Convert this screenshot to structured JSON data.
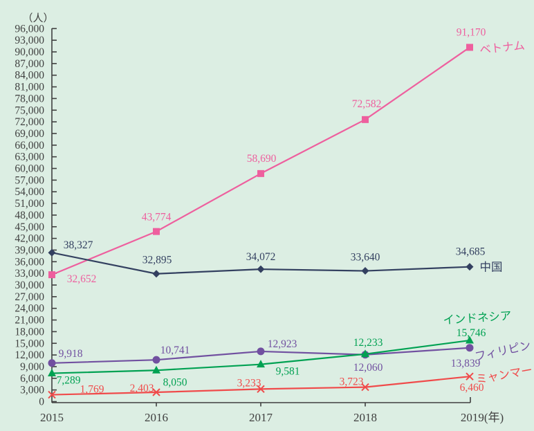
{
  "chart_data": {
    "type": "line",
    "title": "",
    "unit_label": "（人）",
    "xlabel_suffix": "(年)",
    "categories": [
      "2015",
      "2016",
      "2017",
      "2018",
      "2019"
    ],
    "x_labels": [
      "2015",
      "2016",
      "2017",
      "2018",
      "2019(年)"
    ],
    "ylim": [
      0,
      96000
    ],
    "ytick_step": 3000,
    "ytick_labels": [
      "0",
      "3,000",
      "6,000",
      "9,000",
      "12,000",
      "15,000",
      "18,000",
      "21,000",
      "24,000",
      "27,000",
      "30,000",
      "33,000",
      "36,000",
      "39,000",
      "42,000",
      "45,000",
      "48,000",
      "51,000",
      "54,000",
      "57,000",
      "60,000",
      "63,000",
      "66,000",
      "69,000",
      "72,000",
      "75,000",
      "78,000",
      "81,000",
      "84,000",
      "87,000",
      "90,000",
      "93,000",
      "96,000"
    ],
    "grid": false,
    "legend_position": "inline-right-of-last-point",
    "background_color": "#dceee3",
    "axis_color": "#3f3f3f",
    "series": [
      {
        "id": "vietnam",
        "name": "ベトナム",
        "color": "#ee5f9e",
        "marker": "square",
        "values": [
          32652,
          43774,
          58690,
          72582,
          91170
        ],
        "value_labels": [
          "32,652",
          "43,774",
          "58,690",
          "72,582",
          "91,170"
        ],
        "label_offsets": [
          [
            43,
            6
          ],
          [
            0,
            -21
          ],
          [
            1,
            -22
          ],
          [
            2,
            -23
          ],
          [
            2,
            -22
          ]
        ],
        "name_offset": [
          47,
          1
        ],
        "name_rotation": -6
      },
      {
        "id": "china",
        "name": "中国",
        "color": "#334060",
        "marker": "diamond",
        "values": [
          38327,
          32895,
          34072,
          33640,
          34685
        ],
        "value_labels": [
          "38,327",
          "32,895",
          "34,072",
          "33,640",
          "34,685"
        ],
        "label_offsets": [
          [
            38,
            -11
          ],
          [
            1,
            -20
          ],
          [
            0,
            -18
          ],
          [
            0,
            -20
          ],
          [
            1,
            -22
          ]
        ],
        "name_offset": [
          31,
          1
        ],
        "name_rotation": 0
      },
      {
        "id": "indonesia",
        "name": "インドネシア",
        "color": "#00a152",
        "marker": "triangle",
        "values": [
          7289,
          8050,
          9581,
          12233,
          15746
        ],
        "value_labels": [
          "7,289",
          "8,050",
          "9,581",
          "12,233",
          "15,746"
        ],
        "label_offsets": [
          [
            24,
            10
          ],
          [
            27,
            17
          ],
          [
            39,
            10
          ],
          [
            4,
            -17
          ],
          [
            2,
            -11
          ]
        ],
        "name_offset": [
          11,
          -32
        ],
        "name_rotation": -4
      },
      {
        "id": "philippines",
        "name": "フィリピン",
        "color": "#7150a0",
        "marker": "circle",
        "values": [
          9918,
          10741,
          12923,
          12060,
          13839
        ],
        "value_labels": [
          "9,918",
          "10,741",
          "12,923",
          "12,060",
          "13,839"
        ],
        "label_offsets": [
          [
            27,
            -14
          ],
          [
            27,
            -14
          ],
          [
            31,
            -11
          ],
          [
            4,
            18
          ],
          [
            -6,
            22
          ]
        ],
        "name_offset": [
          48,
          5
        ],
        "name_rotation": -12
      },
      {
        "id": "myanmar",
        "name": "ミャンマー",
        "color": "#f04a4a",
        "marker": "x",
        "values": [
          1769,
          2403,
          3233,
          3723,
          6460
        ],
        "value_labels": [
          "1,769",
          "2,403",
          "3,233",
          "3,723",
          "6,460"
        ],
        "label_offsets": [
          [
            58,
            -8
          ],
          [
            -21,
            -6
          ],
          [
            -17,
            -9
          ],
          [
            -20,
            -8
          ],
          [
            3,
            16
          ]
        ],
        "name_offset": [
          50,
          -2
        ],
        "name_rotation": -10
      }
    ]
  }
}
